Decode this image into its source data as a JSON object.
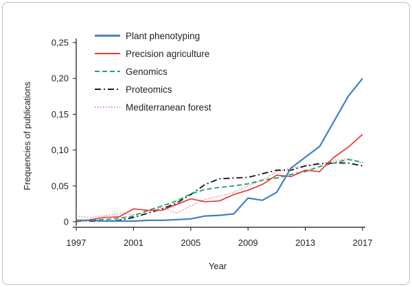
{
  "chart_data": {
    "type": "line",
    "title": "",
    "xlabel": "Year",
    "ylabel": "Frequencies of publications",
    "xlim": [
      1997,
      2017
    ],
    "ylim": [
      0,
      0.25
    ],
    "x_ticks": [
      1997,
      2001,
      2005,
      2009,
      2013,
      2017
    ],
    "x_tick_labels": [
      "1997",
      "2001",
      "2005",
      "2009",
      "2013",
      "2017"
    ],
    "y_ticks": [
      0,
      0.05,
      0.1,
      0.15,
      0.2,
      0.25
    ],
    "y_tick_labels": [
      "0",
      "0,05",
      "0,10",
      "0,15",
      "0,20",
      "0,25"
    ],
    "grid": false,
    "legend_position": "top-left",
    "x": [
      1997,
      1998,
      1999,
      2000,
      2001,
      2002,
      2003,
      2004,
      2005,
      2006,
      2007,
      2008,
      2009,
      2010,
      2011,
      2012,
      2013,
      2014,
      2015,
      2016,
      2017
    ],
    "series": [
      {
        "name": "Plant phenotyping",
        "color": "#3f7fc4",
        "style": "solid",
        "values": [
          0.002,
          0.002,
          0.001,
          0.001,
          0.001,
          0.002,
          0.002,
          0.003,
          0.004,
          0.008,
          0.009,
          0.011,
          0.033,
          0.03,
          0.041,
          0.075,
          0.09,
          0.105,
          0.14,
          0.175,
          0.2
        ]
      },
      {
        "name": "Precision agriculture",
        "color": "#e53935",
        "style": "solid",
        "values": [
          0.0,
          0.003,
          0.006,
          0.007,
          0.018,
          0.016,
          0.016,
          0.024,
          0.032,
          0.028,
          0.029,
          0.038,
          0.044,
          0.052,
          0.065,
          0.063,
          0.072,
          0.07,
          0.09,
          0.104,
          0.122
        ]
      },
      {
        "name": "Genomics",
        "color": "#26a269",
        "style": "dashed",
        "values": [
          0.001,
          0.002,
          0.003,
          0.005,
          0.008,
          0.016,
          0.022,
          0.029,
          0.039,
          0.045,
          0.048,
          0.05,
          0.053,
          0.058,
          0.061,
          0.066,
          0.07,
          0.077,
          0.082,
          0.087,
          0.083
        ]
      },
      {
        "name": "Proteomics",
        "color": "#1a1a1a",
        "style": "dashdot",
        "values": [
          0.002,
          0.001,
          0.001,
          0.002,
          0.006,
          0.012,
          0.018,
          0.026,
          0.038,
          0.052,
          0.06,
          0.061,
          0.062,
          0.067,
          0.072,
          0.072,
          0.078,
          0.081,
          0.082,
          0.082,
          0.078
        ]
      },
      {
        "name": "Mediterranean forest",
        "color": "#d9687a",
        "style": "dotted",
        "values": [
          0.008,
          0.006,
          0.008,
          0.012,
          0.01,
          0.014,
          0.02,
          0.012,
          0.022,
          0.031,
          0.036,
          0.041,
          0.05,
          0.058,
          0.07,
          0.075,
          0.078,
          0.08,
          0.085,
          0.088,
          0.082
        ]
      }
    ]
  }
}
